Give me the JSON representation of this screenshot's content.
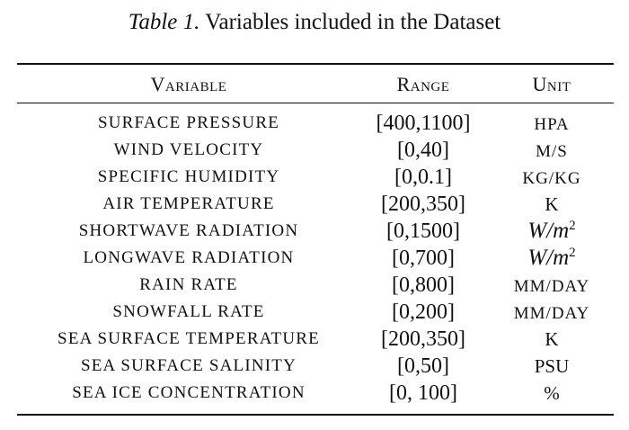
{
  "caption": {
    "label": "Table 1.",
    "text": "Variables included in the Dataset"
  },
  "headers": {
    "variable": "Variable",
    "range": "Range",
    "unit": "Unit"
  },
  "rows": [
    {
      "variable": "SURFACE PRESSURE",
      "range": "[400,1100]",
      "unit": "HPA",
      "unit_style": "sc"
    },
    {
      "variable": "WIND VELOCITY",
      "range": "[0,40]",
      "unit": "M/S",
      "unit_style": "sc"
    },
    {
      "variable": "SPECIFIC HUMIDITY",
      "range": "[0,0.1]",
      "unit": "KG/KG",
      "unit_style": "sc"
    },
    {
      "variable": "AIR TEMPERATURE",
      "range": "[200,350]",
      "unit": "K",
      "unit_style": "plain"
    },
    {
      "variable": "SHORTWAVE RADIATION",
      "range": "[0,1500]",
      "unit": "W/m",
      "unit_sup": "2",
      "unit_style": "math"
    },
    {
      "variable": "LONGWAVE RADIATION",
      "range": "[0,700]",
      "unit": "W/m",
      "unit_sup": "2",
      "unit_style": "math"
    },
    {
      "variable": "RAIN RATE",
      "range": "[0,800]",
      "unit": "MM/DAY",
      "unit_style": "sc"
    },
    {
      "variable": "SNOWFALL RATE",
      "range": "[0,200]",
      "unit": "MM/DAY",
      "unit_style": "sc"
    },
    {
      "variable": "SEA SURFACE TEMPERATURE",
      "range": "[200,350]",
      "unit": "K",
      "unit_style": "plain"
    },
    {
      "variable": "SEA SURFACE SALINITY",
      "range": "[0,50]",
      "unit": "PSU",
      "unit_style": "plain"
    },
    {
      "variable": "SEA ICE CONCENTRATION",
      "range": "[0, 100]",
      "unit": "%",
      "unit_style": "plain"
    }
  ]
}
